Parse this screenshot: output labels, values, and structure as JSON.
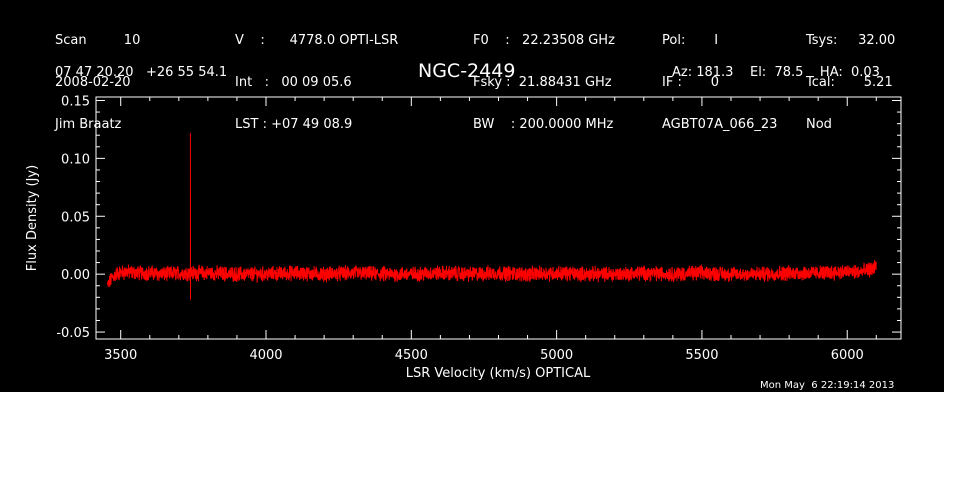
{
  "header": {
    "col1": [
      "Scan         10",
      "2008-02-20",
      "Jim Braatz"
    ],
    "col2": [
      "V    :      4778.0 OPTI-LSR",
      "Int   :   00 09 05.6",
      "LST : +07 49 08.9"
    ],
    "col3": [
      "F0    :   22.23508 GHz",
      "Fsky :  21.88431 GHz",
      "BW    : 200.0000 MHz"
    ],
    "col4": [
      "Pol:       I",
      "IF :       0",
      "AGBT07A_066_23"
    ],
    "col5": [
      "Tsys:     32.00",
      "Tcal:       5.21",
      "Nod"
    ],
    "coords": "07 47 20.20   +26 55 54.1",
    "source": "NGC-2449",
    "azel": "Az: 181.3    El:  78.5    HA:  0.03",
    "timestamp": "Mon May  6 22:19:14 2013"
  },
  "chart_data": {
    "type": "line",
    "xlabel": "LSR Velocity (km/s) OPTICAL",
    "ylabel": "Flux Density (Jy)",
    "xlim": [
      3415,
      6185
    ],
    "ylim": [
      -0.056,
      0.153
    ],
    "xticks": [
      3500,
      4000,
      4500,
      5000,
      5500,
      6000
    ],
    "xtick_labels": [
      "3500",
      "4000",
      "4500",
      "5000",
      "5500",
      "6000"
    ],
    "yticks": [
      -0.05,
      0.0,
      0.05,
      0.1,
      0.15
    ],
    "ytick_labels": [
      "-0.05",
      "0.00",
      "0.05",
      "0.10",
      "0.15"
    ],
    "line_color": "#ff0000",
    "series": [
      {
        "x": [
          3455,
          3470,
          3490,
          3520,
          3560,
          3600,
          3650,
          3700,
          3735,
          3740,
          3742,
          3745,
          3750,
          3800,
          3900,
          4000,
          4100,
          4200,
          4300,
          4400,
          4500,
          4600,
          4700,
          4800,
          4900,
          5000,
          5100,
          5200,
          5300,
          5400,
          5500,
          5600,
          5700,
          5800,
          5900,
          6000,
          6050,
          6090,
          6100
        ],
        "values": [
          -0.01,
          -0.003,
          0.001,
          0.002,
          0.001,
          0.001,
          0.0,
          0.001,
          0.001,
          0.122,
          -0.022,
          0.001,
          0.001,
          0.001,
          0.0,
          0.0,
          0.001,
          0.0,
          0.001,
          0.0,
          0.0,
          0.001,
          0.0,
          0.001,
          0.0,
          0.001,
          0.0,
          0.0,
          0.001,
          0.0,
          0.001,
          0.0,
          0.0,
          0.001,
          0.001,
          0.002,
          0.002,
          0.005,
          0.008
        ]
      }
    ]
  }
}
